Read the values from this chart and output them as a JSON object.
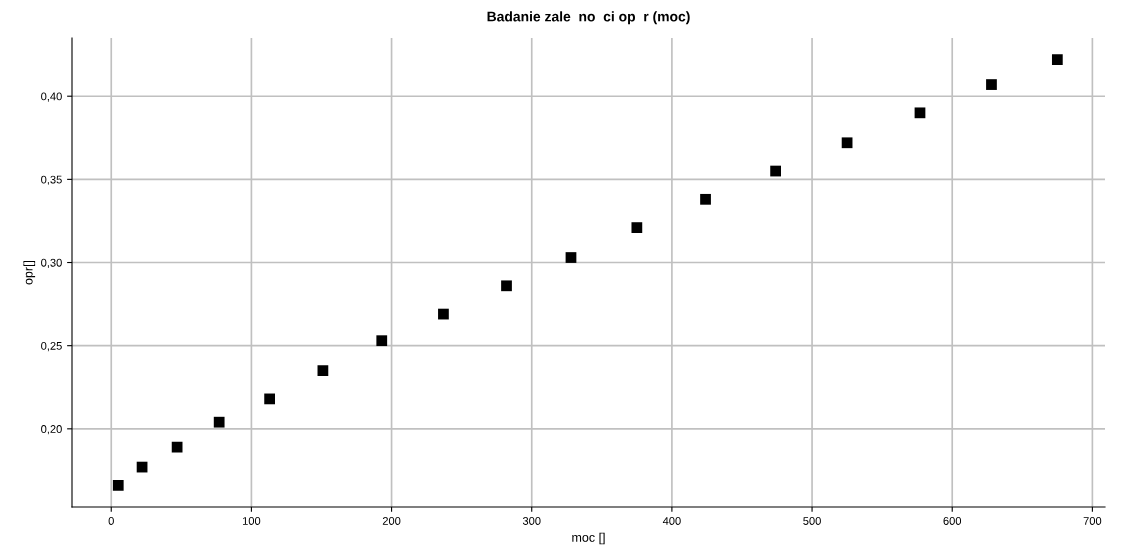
{
  "chart_data": {
    "type": "scatter",
    "title": "Badanie zale  no  ci op  r (moc)",
    "xlabel": "moc []",
    "ylabel": "opr[]",
    "x": [
      5,
      22,
      47,
      77,
      113,
      151,
      193,
      237,
      282,
      328,
      375,
      424,
      474,
      525,
      577,
      628,
      675
    ],
    "values": [
      0.166,
      0.177,
      0.189,
      0.204,
      0.218,
      0.235,
      0.253,
      0.269,
      0.286,
      0.303,
      0.321,
      0.338,
      0.355,
      0.372,
      0.39,
      0.407,
      0.422
    ],
    "color": "#000000",
    "marker": "square",
    "grid": true,
    "xlim": [
      -28,
      709
    ],
    "xticks": [
      0,
      100,
      200,
      300,
      400,
      500,
      600,
      700
    ],
    "ylim": [
      0.153,
      0.435
    ],
    "yticks": [
      {
        "value": 0.2,
        "label": "0,20"
      },
      {
        "value": 0.25,
        "label": "0,25"
      },
      {
        "value": 0.3,
        "label": "0,30"
      },
      {
        "value": 0.35,
        "label": "0,35"
      },
      {
        "value": 0.4,
        "label": "0,40"
      }
    ]
  }
}
